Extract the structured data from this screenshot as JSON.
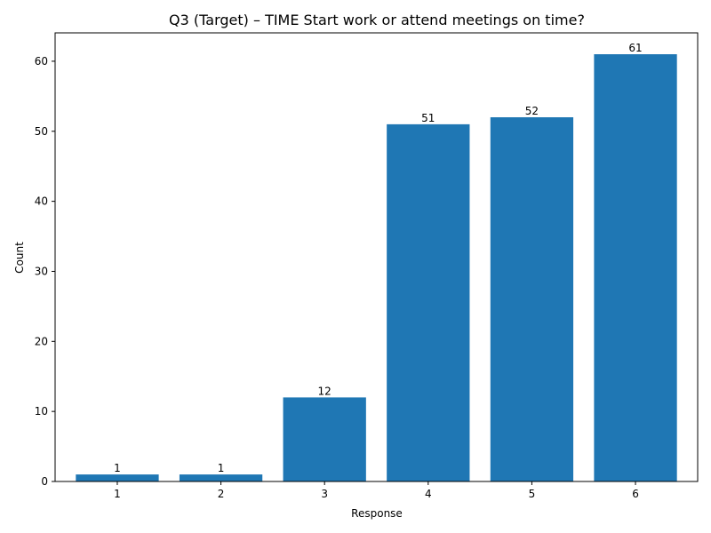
{
  "chart_data": {
    "type": "bar",
    "title": "Q3 (Target) – TIME Start work or attend meetings on time?",
    "xlabel": "Response",
    "ylabel": "Count",
    "categories": [
      "1",
      "2",
      "3",
      "4",
      "5",
      "6"
    ],
    "values": [
      1,
      1,
      12,
      51,
      52,
      61
    ],
    "ylim": [
      0,
      64.05
    ],
    "yticks": [
      0,
      10,
      20,
      30,
      40,
      50,
      60
    ],
    "bar_color": "#1f77b4",
    "grid": false,
    "legend": "none"
  }
}
